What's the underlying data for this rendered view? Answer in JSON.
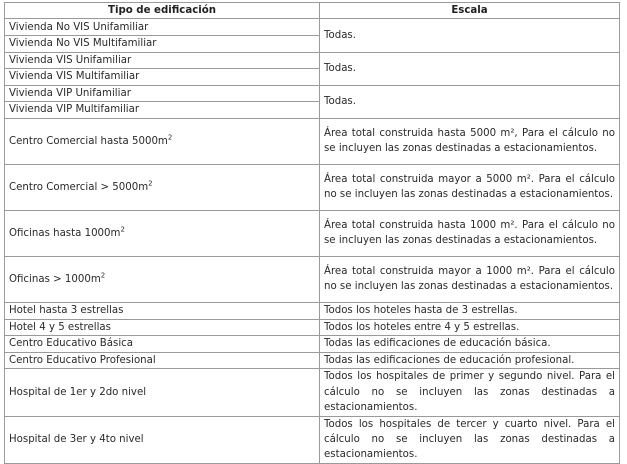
{
  "table": {
    "headers": [
      "Tipo de edificación",
      "Escala"
    ],
    "groups": [
      {
        "types": [
          "Vivienda No VIS Unifamiliar",
          "Vivienda No VIS Multifamiliar"
        ],
        "scale": "Todas."
      },
      {
        "types": [
          "Vivienda VIS Unifamiliar",
          "Vivienda VIS Multifamiliar"
        ],
        "scale": "Todas."
      },
      {
        "types": [
          "Vivienda VIP Unifamiliar",
          "Vivienda VIP Multifamiliar"
        ],
        "scale": "Todas."
      }
    ],
    "rows": [
      {
        "type": "Centro Comercial hasta 5000m",
        "sup": "2",
        "scale": "Área total construida hasta 5000 m², Para el cálculo no se incluyen las zonas destinadas a estacionamientos."
      },
      {
        "type": "Centro Comercial > 5000m",
        "sup": "2",
        "scale": "Área total construida mayor a 5000 m². Para el cálculo no se incluyen las zonas destinadas a estacionamientos."
      },
      {
        "type": "Oficinas hasta 1000m",
        "sup": "2",
        "scale": "Área total construida hasta 1000 m². Para el cálculo no se incluyen las zonas destinadas a estacionamientos."
      },
      {
        "type": "Oficinas > 1000m",
        "sup": "2",
        "scale": "Área total construida mayor a 1000 m². Para el cálculo no se incluyen las zonas destinadas a estacionamientos."
      },
      {
        "type": "Hotel hasta 3 estrellas",
        "scale": "Todos los hoteles hasta de 3 estrellas."
      },
      {
        "type": "Hotel 4 y 5 estrellas",
        "scale": "Todos los hoteles entre 4 y 5 estrellas."
      },
      {
        "type": "Centro Educativo Básica",
        "scale": "Todas las edificaciones de educación básica."
      },
      {
        "type": "Centro Educativo Profesional",
        "scale": "Todas las edificaciones de educación profesional."
      },
      {
        "type": "Hospital de 1er y 2do nivel",
        "scale": "Todos los hospitales de primer y segundo nivel. Para el cálculo no se incluyen las zonas destinadas a estacionamientos."
      },
      {
        "type": "Hospital de 3er y 4to nivel",
        "scale": "Todos los hospitales de tercer y cuarto nivel. Para el cálculo no se incluyen las zonas destinadas a estacionamientos."
      }
    ]
  }
}
